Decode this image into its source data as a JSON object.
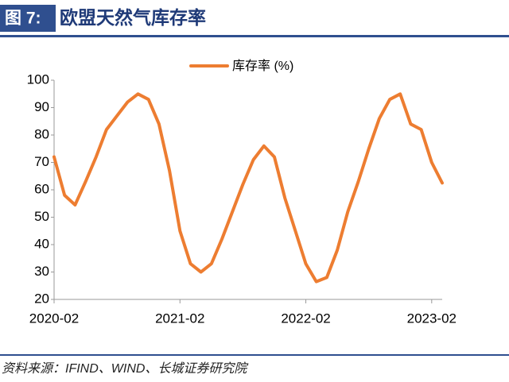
{
  "header": {
    "figure_label": "图 7:"
  },
  "chart_data": {
    "type": "line",
    "title": "欧盟天然气库存率",
    "x": [
      "2020-02",
      "2020-03",
      "2020-04",
      "2020-05",
      "2020-06",
      "2020-07",
      "2020-08",
      "2020-09",
      "2020-10",
      "2020-11",
      "2020-12",
      "2021-01",
      "2021-02",
      "2021-03",
      "2021-04",
      "2021-05",
      "2021-06",
      "2021-07",
      "2021-08",
      "2021-09",
      "2021-10",
      "2021-11",
      "2021-12",
      "2022-01",
      "2022-02",
      "2022-03",
      "2022-04",
      "2022-05",
      "2022-06",
      "2022-07",
      "2022-08",
      "2022-09",
      "2022-10",
      "2022-11",
      "2022-12",
      "2023-01",
      "2023-02",
      "2023-03"
    ],
    "series": [
      {
        "name": "库存率 (%)",
        "color": "#ed7d31",
        "values": [
          72,
          58,
          54.5,
          63,
          72,
          82,
          87,
          92,
          95,
          93,
          84,
          67,
          45,
          33,
          30,
          33,
          42,
          52,
          62,
          71,
          76,
          72,
          57,
          45,
          33,
          26.5,
          28,
          38,
          52,
          63,
          75,
          86,
          93,
          95,
          84,
          82,
          70,
          62.5
        ]
      }
    ],
    "xlim": [
      "2020-02",
      "2023-03"
    ],
    "xticks": [
      "2020-02",
      "2021-02",
      "2022-02",
      "2023-02"
    ],
    "ylim": [
      20,
      100
    ],
    "yticks": [
      20,
      30,
      40,
      50,
      60,
      70,
      80,
      90,
      100
    ],
    "legend": "top",
    "source": "资料来源：IFIND、WIND、长城证券研究院"
  }
}
